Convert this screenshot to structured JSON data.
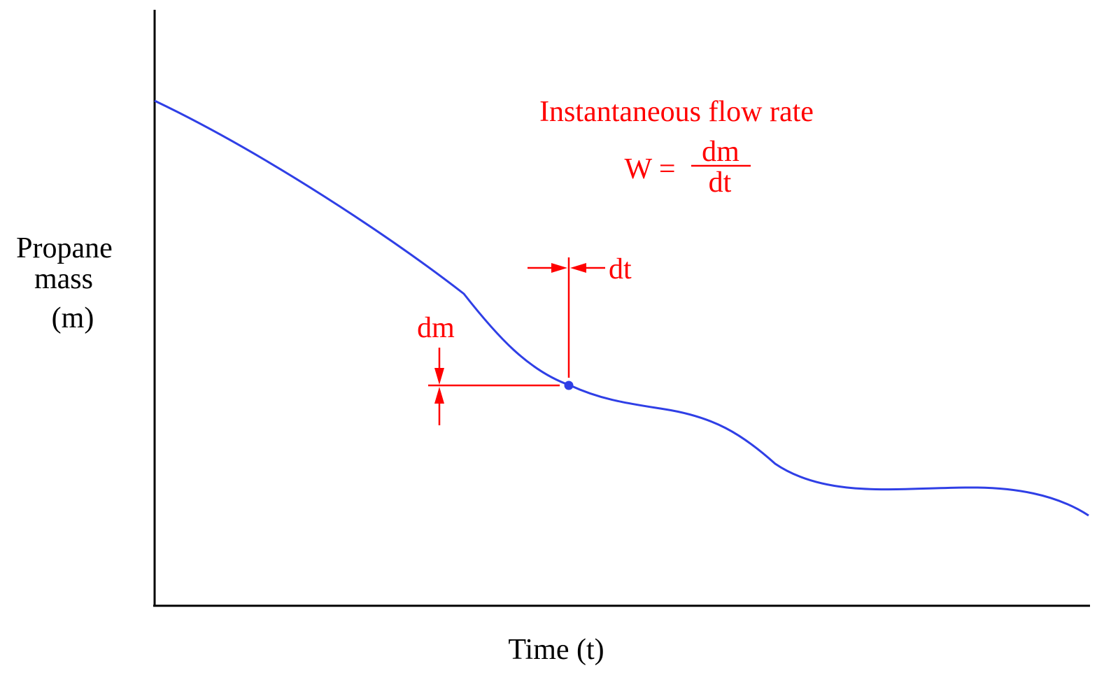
{
  "axes": {
    "y_label_lines": [
      "Propane",
      "mass",
      "(m)"
    ],
    "x_label": "Time (t)"
  },
  "annotation": {
    "title": "Instantaneous flow rate",
    "formula_lhs": "W =",
    "numerator": "dm",
    "denominator": "dt",
    "dt_label": "dt",
    "dm_label": "dm"
  },
  "colors": {
    "curve": "#2f3fe6",
    "annotation": "#ff0000",
    "axes": "#000000"
  }
}
